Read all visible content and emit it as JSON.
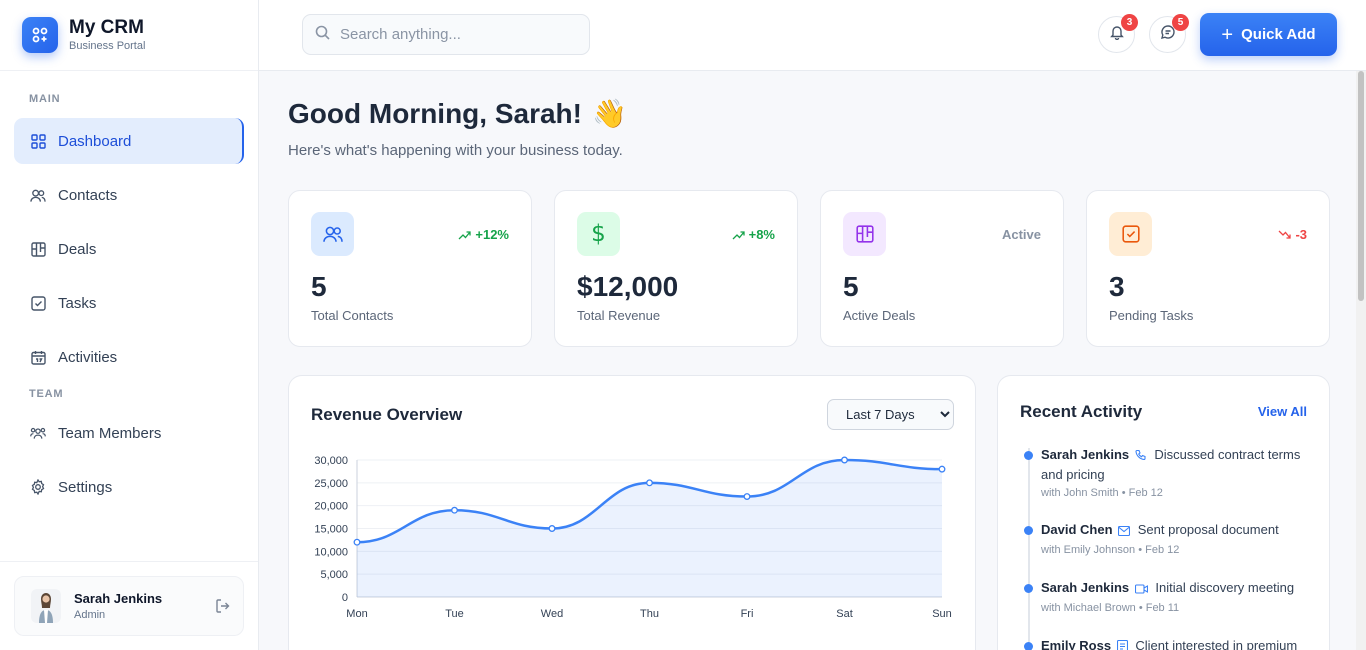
{
  "brand": {
    "name": "My CRM",
    "subtitle": "Business Portal"
  },
  "sidebar": {
    "section_main": "MAIN",
    "section_team": "TEAM",
    "items": [
      {
        "label": "Dashboard",
        "icon": "grid-icon",
        "active": true
      },
      {
        "label": "Contacts",
        "icon": "users-icon"
      },
      {
        "label": "Deals",
        "icon": "kanban-icon"
      },
      {
        "label": "Tasks",
        "icon": "checkbox-icon"
      },
      {
        "label": "Activities",
        "icon": "calendar-icon"
      },
      {
        "label": "Team Members",
        "icon": "team-icon"
      },
      {
        "label": "Settings",
        "icon": "gear-icon"
      }
    ],
    "user": {
      "name": "Sarah Jenkins",
      "role": "Admin"
    }
  },
  "header": {
    "search_placeholder": "Search anything...",
    "notifications_count": "3",
    "messages_count": "5",
    "quick_add_label": "Quick Add",
    "accent": "#2563eb"
  },
  "main": {
    "greeting": "Good Morning, Sarah!",
    "greeting_emoji": "👋",
    "subtitle": "Here's what's happening with your business today.",
    "stats": [
      {
        "value": "5",
        "label": "Total Contacts",
        "trend": "+12%",
        "trend_dir": "up",
        "icon": "users-icon",
        "color": "#2563eb",
        "bg": "#dbeafe"
      },
      {
        "value": "$12,000",
        "label": "Total Revenue",
        "trend": "+8%",
        "trend_dir": "up",
        "icon": "dollar-icon",
        "color": "#16a34a",
        "bg": "#dcfce7"
      },
      {
        "value": "5",
        "label": "Active Deals",
        "trend": "Active",
        "trend_dir": "none",
        "icon": "kanban-icon",
        "color": "#9333ea",
        "bg": "#f3e8ff"
      },
      {
        "value": "3",
        "label": "Pending Tasks",
        "trend": "-3",
        "trend_dir": "down",
        "icon": "checkbox-icon",
        "color": "#ea580c",
        "bg": "#ffedd5"
      }
    ],
    "revenue": {
      "title": "Revenue Overview",
      "range_selected": "Last 7 Days"
    },
    "activity": {
      "title": "Recent Activity",
      "view_all": "View All",
      "items": [
        {
          "name": "Sarah Jenkins",
          "icon": "phone-icon",
          "text": "Discussed contract terms and pricing",
          "meta": "with John Smith • Feb 12"
        },
        {
          "name": "David Chen",
          "icon": "mail-icon",
          "text": "Sent proposal document",
          "meta": "with Emily Johnson • Feb 12"
        },
        {
          "name": "Sarah Jenkins",
          "icon": "video-icon",
          "text": "Initial discovery meeting",
          "meta": "with Michael Brown • Feb 11"
        },
        {
          "name": "Emily Ross",
          "icon": "note-icon",
          "text": "Client interested in premium",
          "meta": ""
        }
      ]
    }
  },
  "chart_data": {
    "type": "area",
    "categories": [
      "Mon",
      "Tue",
      "Wed",
      "Thu",
      "Fri",
      "Sat",
      "Sun"
    ],
    "series": [
      {
        "values": [
          12000,
          19000,
          15000,
          25000,
          22000,
          30000,
          28000
        ]
      }
    ],
    "ylim": [
      0,
      30000
    ],
    "yticks": [
      "0",
      "5,000",
      "10,000",
      "15,000",
      "20,000",
      "25,000",
      "30,000"
    ],
    "grid": true,
    "color": "#3b82f6"
  }
}
